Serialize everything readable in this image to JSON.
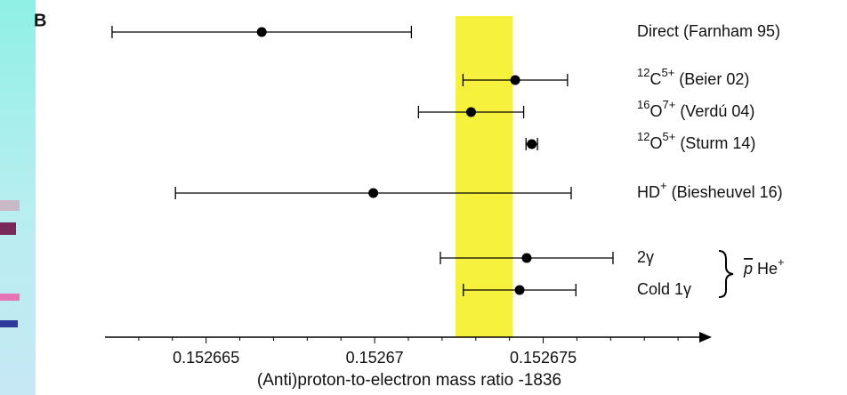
{
  "chart_data": {
    "type": "errorbar",
    "panel_label": "B",
    "xlabel": "(Anti)proton-to-electron mass ratio  -1836",
    "xlim": [
      0.152662,
      0.15268
    ],
    "xticks": [
      0.152665,
      0.15267,
      0.152675
    ],
    "xminorticks": [
      0.152663,
      0.152664,
      0.152666,
      0.152667,
      0.152668,
      0.152669,
      0.152671,
      0.152672,
      0.152673,
      0.152674,
      0.152676,
      0.152677,
      0.152678,
      0.152679
    ],
    "band": [
      0.1526724,
      0.1526741
    ],
    "band_color": "#f5f13c",
    "color": "#000000",
    "points": [
      {
        "label": [
          {
            "text": "Direct (Farnham 95)"
          }
        ],
        "value": 0.15266665,
        "error": 4.44e-06
      },
      {
        "label": [
          {
            "text": "12",
            "sup": true
          },
          {
            "text": "C"
          },
          {
            "text": "5+",
            "sup": true
          },
          {
            "text": " (Beier 02)"
          }
        ],
        "value": 0.15267417,
        "error": 1.55e-06
      },
      {
        "label": [
          {
            "text": "16",
            "sup": true
          },
          {
            "text": "O"
          },
          {
            "text": "7+",
            "sup": true
          },
          {
            "text": " (Verdú 04)"
          }
        ],
        "value": 0.15267286,
        "error": 1.56e-06
      },
      {
        "label": [
          {
            "text": "12",
            "sup": true
          },
          {
            "text": "O"
          },
          {
            "text": "5+",
            "sup": true
          },
          {
            "text": " (Sturm 14)"
          }
        ],
        "value": 0.15267466,
        "error": 1.7e-07
      },
      {
        "label": [
          {
            "text": "HD"
          },
          {
            "text": "+",
            "sup": true
          },
          {
            "text": " (Biesheuvel 16)"
          }
        ],
        "value": 0.15266996,
        "error": 5.87e-06
      },
      {
        "label": [
          {
            "text": "2γ"
          }
        ],
        "value": 0.15267451,
        "error": 2.56e-06
      },
      {
        "label": [
          {
            "text": "Cold 1γ"
          }
        ],
        "value": 0.1526743,
        "error": 1.67e-06
      }
    ],
    "group_label": [
      {
        "text": "p",
        "overline": true,
        "italic": true
      },
      {
        "text": " He"
      },
      {
        "text": "+",
        "sup": true
      }
    ]
  }
}
